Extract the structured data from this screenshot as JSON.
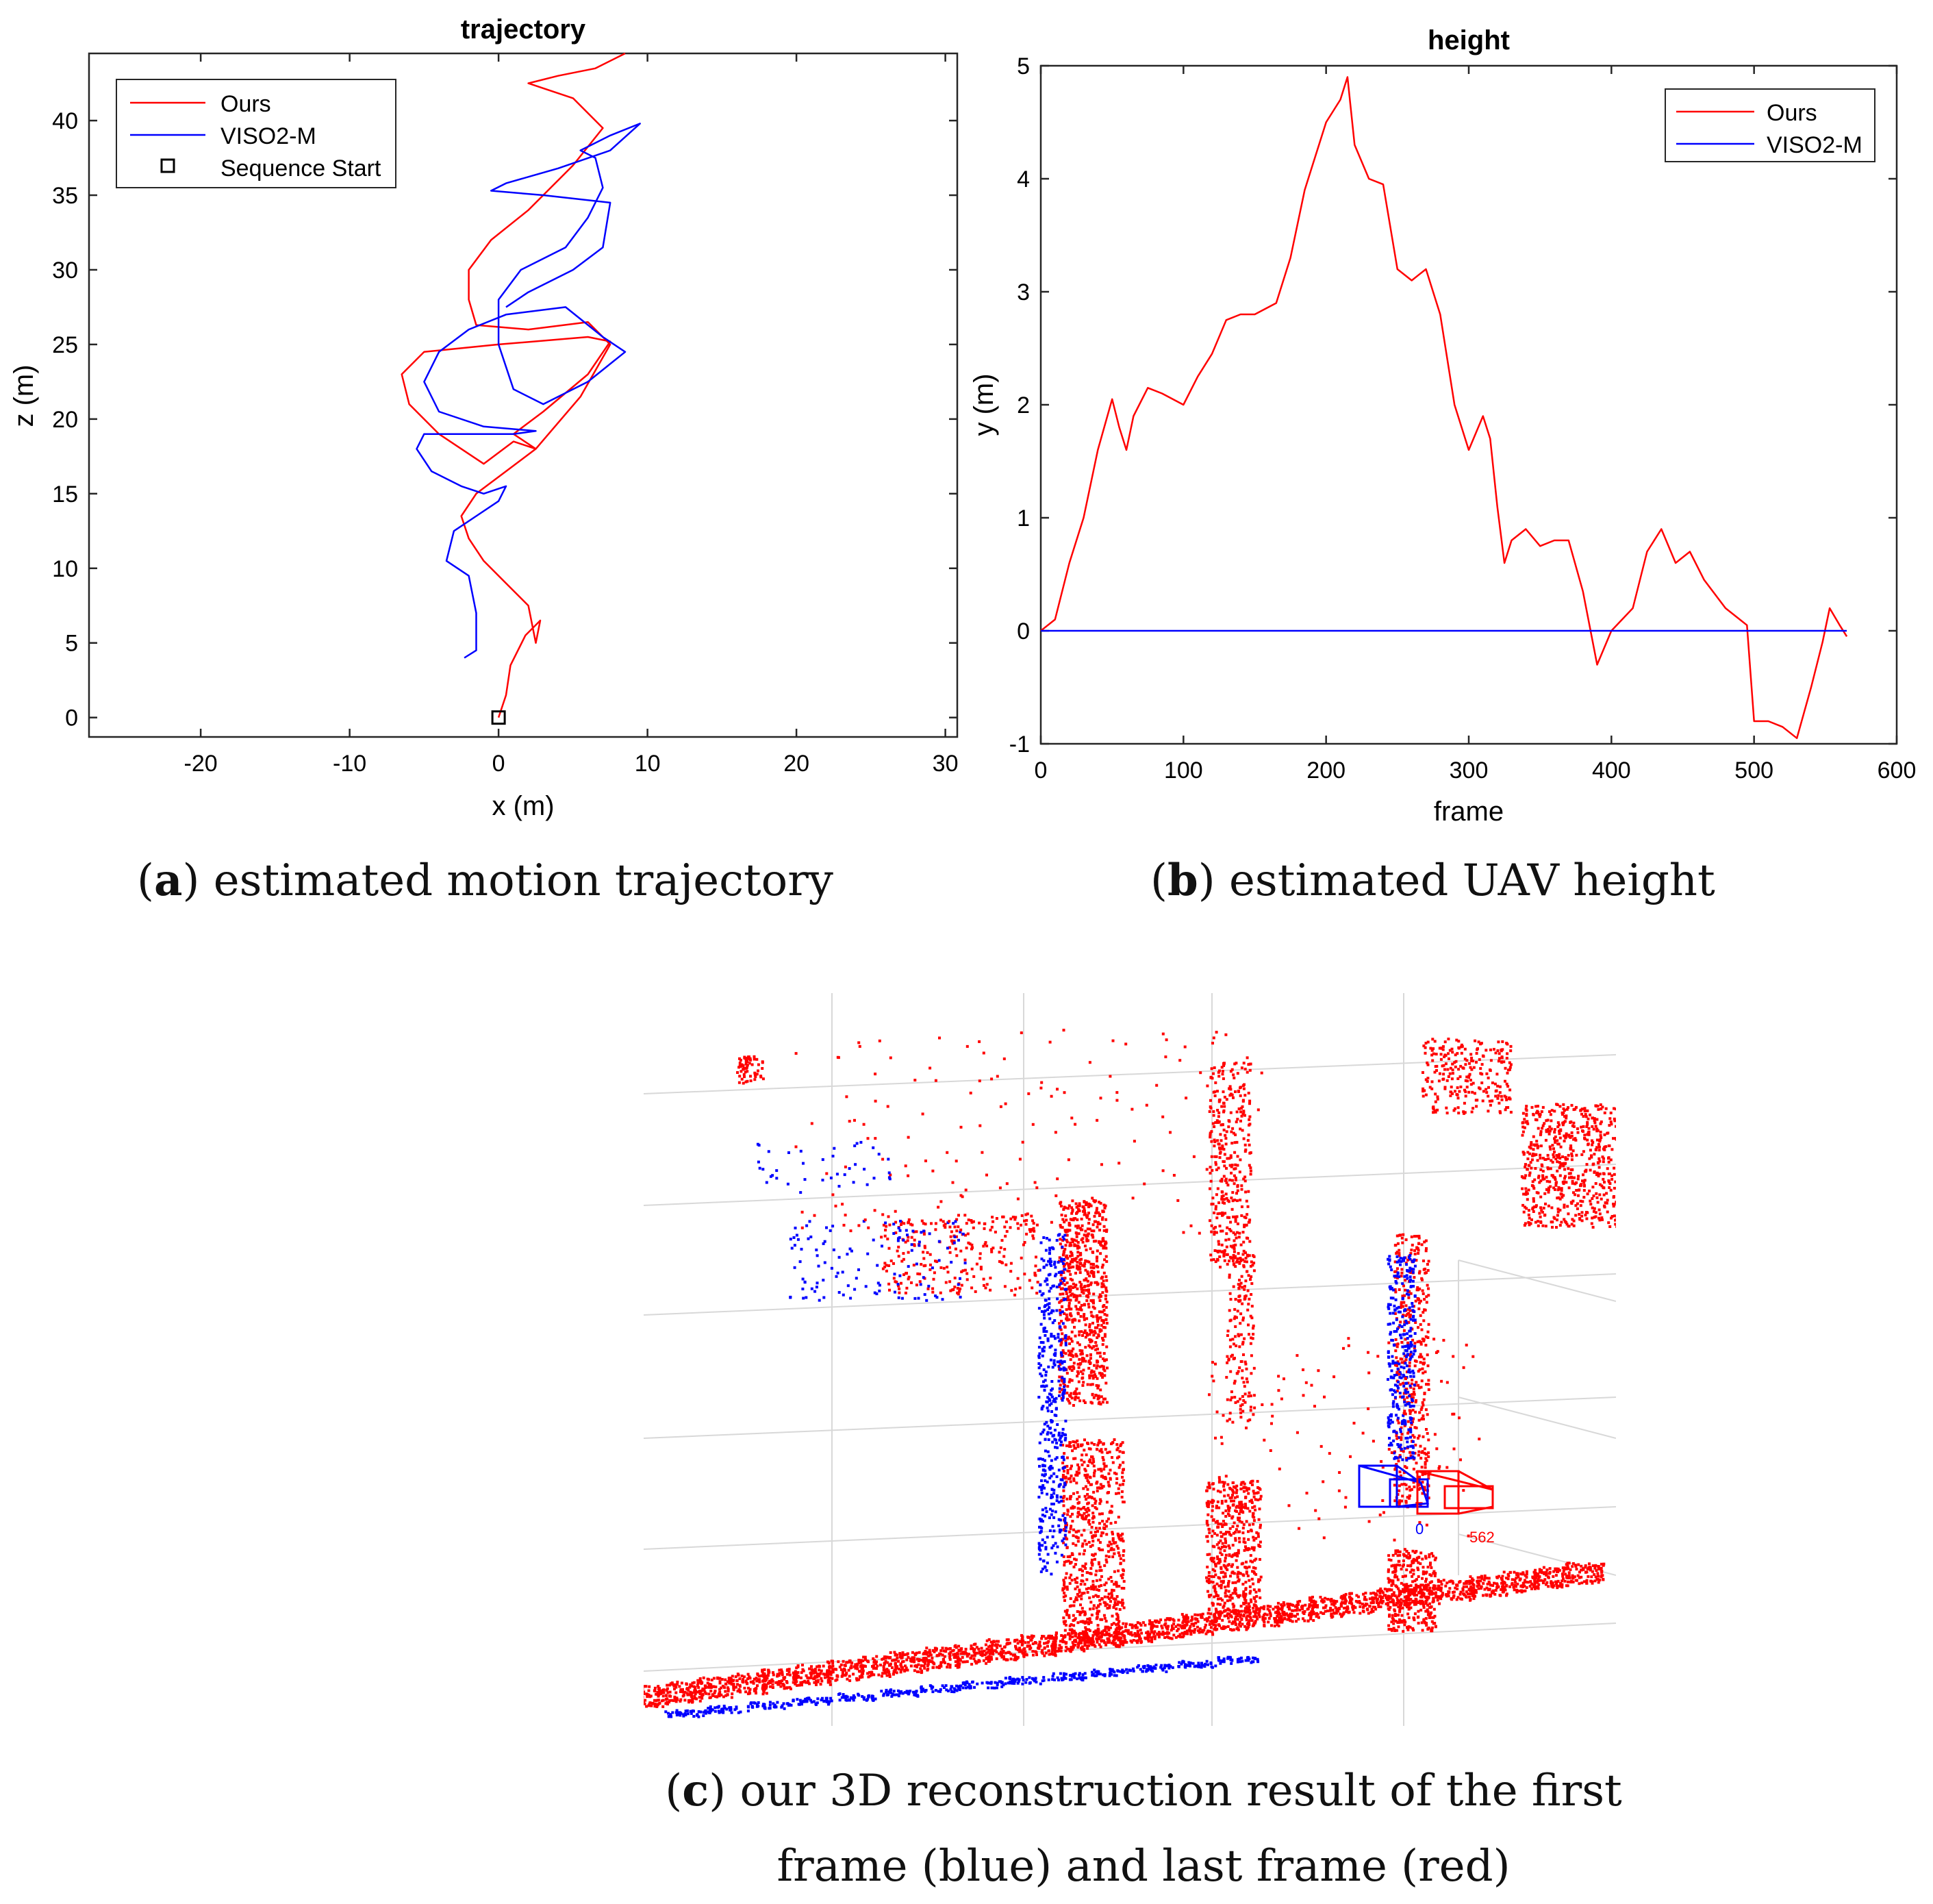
{
  "chart_data": [
    {
      "type": "line",
      "title": "trajectory",
      "xlabel": "x (m)",
      "ylabel": "z (m)",
      "xlim": [
        -27.5,
        30.8
      ],
      "ylim": [
        -1.3,
        44.5
      ],
      "xticks": [
        -20,
        -10,
        0,
        10,
        20,
        30
      ],
      "yticks": [
        0,
        5,
        10,
        15,
        20,
        25,
        30,
        35,
        40
      ],
      "legend_position": "top-left",
      "series": [
        {
          "name": "Ours",
          "color": "#ff0000",
          "points": [
            [
              0,
              0
            ],
            [
              0.5,
              1.5
            ],
            [
              0.8,
              3.5
            ],
            [
              1.8,
              5.5
            ],
            [
              2.8,
              6.5
            ],
            [
              2.5,
              5.0
            ],
            [
              2.0,
              7.5
            ],
            [
              0.5,
              9.0
            ],
            [
              -1.0,
              10.5
            ],
            [
              -2.0,
              12.0
            ],
            [
              -2.5,
              13.5
            ],
            [
              -1.5,
              15.0
            ],
            [
              0.5,
              16.5
            ],
            [
              2.5,
              18.0
            ],
            [
              1.0,
              18.5
            ],
            [
              -1.0,
              17.0
            ],
            [
              -2.5,
              18.0
            ],
            [
              -4.0,
              19.0
            ],
            [
              -6.0,
              21.0
            ],
            [
              -6.5,
              23.0
            ],
            [
              -5.0,
              24.5
            ],
            [
              0.0,
              25.0
            ],
            [
              6.0,
              25.5
            ],
            [
              7.5,
              25.2
            ],
            [
              6.0,
              23.0
            ],
            [
              3.0,
              20.5
            ],
            [
              1.0,
              19.0
            ],
            [
              2.5,
              18.0
            ],
            [
              5.5,
              21.5
            ],
            [
              7.5,
              25.0
            ],
            [
              6.0,
              26.5
            ],
            [
              2.0,
              26.0
            ],
            [
              -1.5,
              26.3
            ],
            [
              -2.0,
              28.0
            ],
            [
              -2.0,
              30.0
            ],
            [
              -0.5,
              32.0
            ],
            [
              2.0,
              34.0
            ],
            [
              5.0,
              37.0
            ],
            [
              7.0,
              39.5
            ],
            [
              5.0,
              41.5
            ],
            [
              2.0,
              42.5
            ],
            [
              4.0,
              43.0
            ],
            [
              6.5,
              43.5
            ],
            [
              8.5,
              44.5
            ]
          ]
        },
        {
          "name": "VISO2-M",
          "color": "#0000ff",
          "points": [
            [
              -2.3,
              4.0
            ],
            [
              -1.5,
              4.5
            ],
            [
              -1.5,
              7.0
            ],
            [
              -2.0,
              9.5
            ],
            [
              -3.5,
              10.5
            ],
            [
              -3.0,
              12.5
            ],
            [
              -1.5,
              13.5
            ],
            [
              0.0,
              14.5
            ],
            [
              0.5,
              15.5
            ],
            [
              -1.0,
              15.0
            ],
            [
              -2.5,
              15.5
            ],
            [
              -4.5,
              16.5
            ],
            [
              -5.5,
              18.0
            ],
            [
              -5.0,
              19.0
            ],
            [
              -2.0,
              19.0
            ],
            [
              1.0,
              19.0
            ],
            [
              2.5,
              19.2
            ],
            [
              -1.0,
              19.5
            ],
            [
              -4.0,
              20.5
            ],
            [
              -5.0,
              22.5
            ],
            [
              -4.0,
              24.5
            ],
            [
              -2.0,
              26.0
            ],
            [
              0.5,
              27.0
            ],
            [
              4.5,
              27.5
            ],
            [
              7.0,
              25.5
            ],
            [
              8.5,
              24.5
            ],
            [
              6.0,
              22.5
            ],
            [
              3.0,
              21.0
            ],
            [
              1.0,
              22.0
            ],
            [
              0.0,
              25.0
            ],
            [
              0.0,
              28.0
            ],
            [
              1.5,
              30.0
            ],
            [
              4.5,
              31.5
            ],
            [
              6.0,
              33.5
            ],
            [
              7.0,
              35.5
            ],
            [
              6.5,
              37.5
            ],
            [
              5.5,
              38.0
            ],
            [
              7.5,
              39.0
            ],
            [
              9.5,
              39.8
            ],
            [
              7.5,
              38.0
            ],
            [
              4.0,
              36.8
            ],
            [
              0.5,
              35.8
            ],
            [
              -0.5,
              35.3
            ],
            [
              3.0,
              35.0
            ],
            [
              7.5,
              34.5
            ],
            [
              7.0,
              31.5
            ],
            [
              5.0,
              30.0
            ],
            [
              2.0,
              28.5
            ],
            [
              0.5,
              27.5
            ]
          ]
        },
        {
          "name": "Sequence Start",
          "marker": "square",
          "color": "#000000",
          "points": [
            [
              0,
              0
            ]
          ]
        }
      ]
    },
    {
      "type": "line",
      "title": "height",
      "xlabel": "frame",
      "ylabel": "y (m)",
      "xlim": [
        0,
        600
      ],
      "ylim": [
        -1,
        5
      ],
      "xticks": [
        0,
        100,
        200,
        300,
        400,
        500,
        600
      ],
      "yticks": [
        -1,
        0,
        1,
        2,
        3,
        4,
        5
      ],
      "legend_position": "top-right",
      "series": [
        {
          "name": "Ours",
          "color": "#ff0000",
          "points": [
            [
              0,
              0
            ],
            [
              10,
              0.1
            ],
            [
              20,
              0.6
            ],
            [
              30,
              1.0
            ],
            [
              40,
              1.6
            ],
            [
              50,
              2.05
            ],
            [
              55,
              1.8
            ],
            [
              60,
              1.6
            ],
            [
              65,
              1.9
            ],
            [
              75,
              2.15
            ],
            [
              85,
              2.1
            ],
            [
              100,
              2.0
            ],
            [
              110,
              2.25
            ],
            [
              120,
              2.45
            ],
            [
              130,
              2.75
            ],
            [
              140,
              2.8
            ],
            [
              150,
              2.8
            ],
            [
              165,
              2.9
            ],
            [
              175,
              3.3
            ],
            [
              185,
              3.9
            ],
            [
              190,
              4.1
            ],
            [
              200,
              4.5
            ],
            [
              210,
              4.7
            ],
            [
              215,
              4.9
            ],
            [
              220,
              4.3
            ],
            [
              230,
              4.0
            ],
            [
              240,
              3.95
            ],
            [
              250,
              3.2
            ],
            [
              260,
              3.1
            ],
            [
              265,
              3.15
            ],
            [
              270,
              3.2
            ],
            [
              280,
              2.8
            ],
            [
              290,
              2.0
            ],
            [
              300,
              1.6
            ],
            [
              310,
              1.9
            ],
            [
              315,
              1.7
            ],
            [
              320,
              1.1
            ],
            [
              325,
              0.6
            ],
            [
              330,
              0.8
            ],
            [
              340,
              0.9
            ],
            [
              350,
              0.75
            ],
            [
              360,
              0.8
            ],
            [
              370,
              0.8
            ],
            [
              380,
              0.35
            ],
            [
              390,
              -0.3
            ],
            [
              400,
              0.0
            ],
            [
              415,
              0.2
            ],
            [
              425,
              0.7
            ],
            [
              435,
              0.9
            ],
            [
              445,
              0.6
            ],
            [
              455,
              0.7
            ],
            [
              465,
              0.45
            ],
            [
              480,
              0.2
            ],
            [
              495,
              0.05
            ],
            [
              500,
              -0.8
            ],
            [
              510,
              -0.8
            ],
            [
              520,
              -0.85
            ],
            [
              530,
              -0.95
            ],
            [
              540,
              -0.5
            ],
            [
              548,
              -0.1
            ],
            [
              553,
              0.2
            ],
            [
              560,
              0.05
            ],
            [
              565,
              -0.05
            ]
          ]
        },
        {
          "name": "VISO2-M",
          "color": "#0000ff",
          "points": [
            [
              0,
              0
            ],
            [
              565,
              0
            ]
          ]
        }
      ]
    },
    {
      "type": "scatter",
      "title": "",
      "series": [
        {
          "name": "first frame",
          "color": "#0000ff"
        },
        {
          "name": "last frame",
          "color": "#ff0000"
        }
      ],
      "annotations": [
        "0",
        "562"
      ]
    }
  ],
  "captions": {
    "a_label": "a",
    "a_text": "estimated motion trajectory",
    "b_label": "b",
    "b_text": "estimated UAV height",
    "c_label": "c",
    "c_text": "our 3D reconstruction result of the first frame (blue) and last frame (red)"
  }
}
